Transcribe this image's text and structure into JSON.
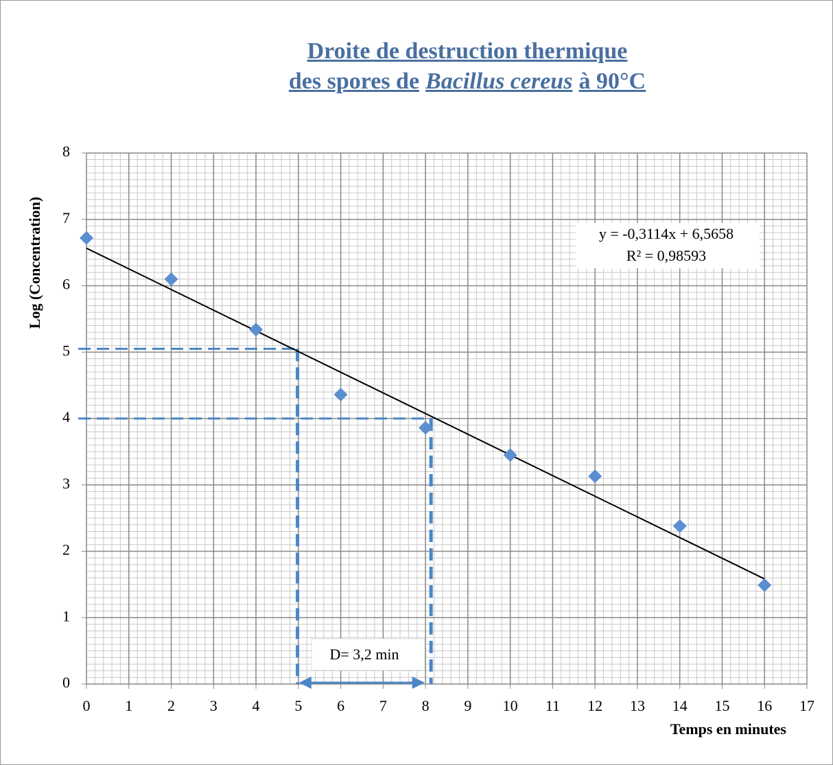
{
  "chart_data": {
    "type": "scatter",
    "title": {
      "line1": "Droite de destruction thermique",
      "line2": [
        "des spores de",
        "Bacillus cereus",
        "à 90°C"
      ]
    },
    "x_label": "Temps en minutes",
    "y_label": "Log (Concentration)",
    "x": [
      0,
      2,
      4,
      6,
      8,
      10,
      12,
      14,
      16
    ],
    "values": [
      6.72,
      6.1,
      5.34,
      4.36,
      3.86,
      3.45,
      3.13,
      2.38,
      1.49
    ],
    "color": "#5b8fd0",
    "trendline": {
      "x": [
        0,
        16
      ],
      "values": [
        6.5658,
        1.5834
      ],
      "color": "#000000",
      "equation": "y = -0,3114x + 6,5658",
      "r2": "R² = 0,98593"
    },
    "guides": [
      {
        "x": 4.98,
        "y": 5.05
      },
      {
        "x": 8.13,
        "y": 4.0
      }
    ],
    "guide_color": "#4a86c8",
    "d_arrow": {
      "from": 4.98,
      "to": 7.98,
      "label": "D= 3,2 min"
    },
    "xlim": [
      0,
      17
    ],
    "xticks": [
      0,
      1,
      2,
      3,
      4,
      5,
      6,
      7,
      8,
      9,
      10,
      11,
      12,
      13,
      14,
      15,
      16,
      17
    ],
    "ylim": [
      0,
      8
    ],
    "yticks": [
      0,
      1,
      2,
      3,
      4,
      5,
      6,
      7,
      8
    ],
    "grid": true,
    "minor_grid": {
      "x": 0.2,
      "y": 0.1
    }
  }
}
